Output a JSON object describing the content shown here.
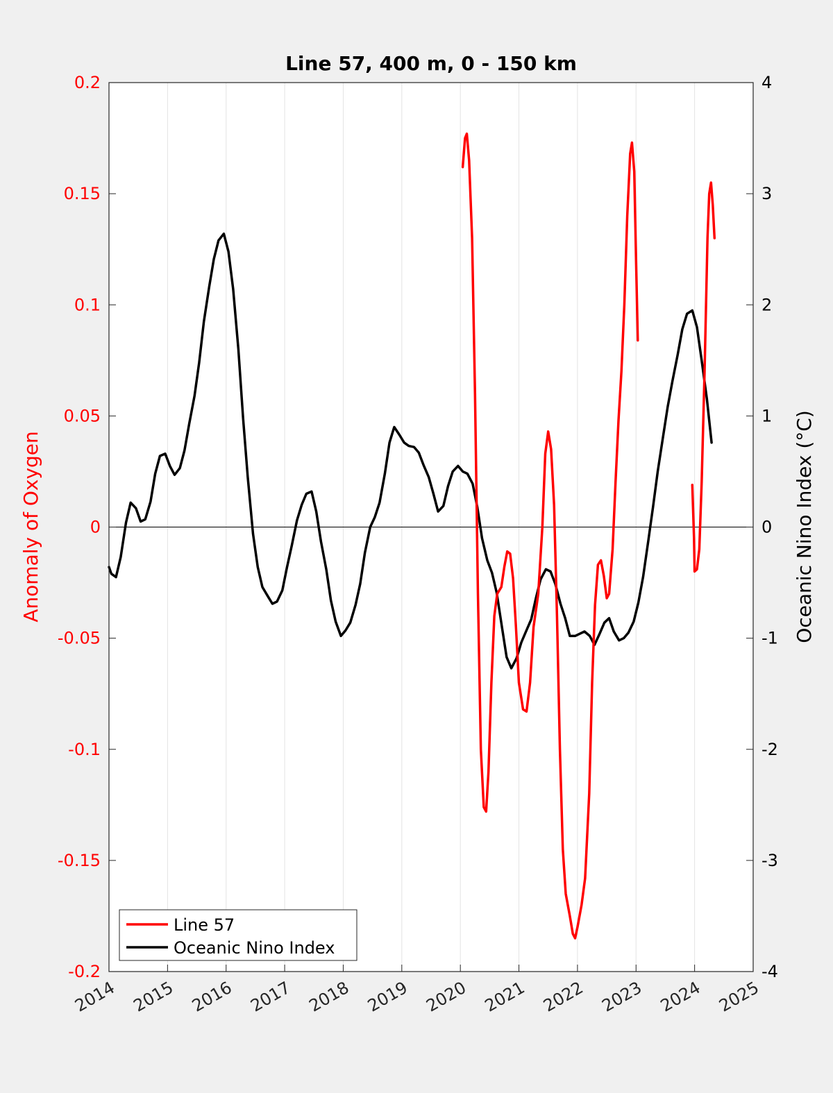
{
  "chart_data": {
    "type": "line",
    "title": "Line 57, 400 m, 0 - 150 km",
    "ylabel_left": "Anomaly of Oxygen",
    "ylabel_right": "Oceanic Nino Index (°C)",
    "xlabel": "",
    "xlim": [
      2014,
      2025
    ],
    "ylim_left": [
      -0.2,
      0.2
    ],
    "ylim_right": [
      -4,
      4
    ],
    "x_ticks": [
      {
        "value": 2014,
        "label": "2014"
      },
      {
        "value": 2015,
        "label": "2015"
      },
      {
        "value": 2016,
        "label": "2016"
      },
      {
        "value": 2017,
        "label": "2017"
      },
      {
        "value": 2018,
        "label": "2018"
      },
      {
        "value": 2019,
        "label": "2019"
      },
      {
        "value": 2020,
        "label": "2020"
      },
      {
        "value": 2021,
        "label": "2021"
      },
      {
        "value": 2022,
        "label": "2022"
      },
      {
        "value": 2023,
        "label": "2023"
      },
      {
        "value": 2024,
        "label": "2024"
      },
      {
        "value": 2025,
        "label": "2025"
      }
    ],
    "y_ticks_left": [
      {
        "value": 0.2,
        "label": "0.2"
      },
      {
        "value": 0.15,
        "label": "0.15"
      },
      {
        "value": 0.1,
        "label": "0.1"
      },
      {
        "value": 0.05,
        "label": "0.05"
      },
      {
        "value": 0,
        "label": "0"
      },
      {
        "value": -0.05,
        "label": "-0.05"
      },
      {
        "value": -0.1,
        "label": "-0.1"
      },
      {
        "value": -0.15,
        "label": "-0.15"
      },
      {
        "value": -0.2,
        "label": "-0.2"
      }
    ],
    "y_ticks_right": [
      {
        "value": 4,
        "label": "4"
      },
      {
        "value": 3,
        "label": "3"
      },
      {
        "value": 2,
        "label": "2"
      },
      {
        "value": 1,
        "label": "1"
      },
      {
        "value": 0,
        "label": "0"
      },
      {
        "value": -1,
        "label": "-1"
      },
      {
        "value": -2,
        "label": "-2"
      },
      {
        "value": -3,
        "label": "-3"
      },
      {
        "value": -4,
        "label": "-4"
      }
    ],
    "grid": "vertical",
    "zero_line": true,
    "legend_position": "bottom-left",
    "series": [
      {
        "name": "Line 57",
        "axis": "left",
        "color": "#ff0000",
        "segments": [
          [
            [
              2020.04,
              0.162
            ],
            [
              2020.08,
              0.175
            ],
            [
              2020.11,
              0.177
            ],
            [
              2020.15,
              0.165
            ],
            [
              2020.2,
              0.13
            ],
            [
              2020.25,
              0.06
            ],
            [
              2020.3,
              -0.03
            ],
            [
              2020.35,
              -0.1
            ],
            [
              2020.4,
              -0.126
            ],
            [
              2020.44,
              -0.128
            ],
            [
              2020.48,
              -0.11
            ],
            [
              2020.53,
              -0.07
            ],
            [
              2020.58,
              -0.04
            ],
            [
              2020.63,
              -0.03
            ],
            [
              2020.7,
              -0.027
            ],
            [
              2020.75,
              -0.018
            ],
            [
              2020.8,
              -0.011
            ],
            [
              2020.85,
              -0.012
            ],
            [
              2020.9,
              -0.023
            ],
            [
              2020.95,
              -0.045
            ],
            [
              2021.0,
              -0.07
            ],
            [
              2021.07,
              -0.082
            ],
            [
              2021.13,
              -0.083
            ],
            [
              2021.19,
              -0.07
            ],
            [
              2021.25,
              -0.045
            ],
            [
              2021.33,
              -0.03
            ],
            [
              2021.4,
              0.0
            ],
            [
              2021.45,
              0.033
            ],
            [
              2021.5,
              0.043
            ],
            [
              2021.55,
              0.035
            ],
            [
              2021.6,
              0.01
            ],
            [
              2021.65,
              -0.04
            ],
            [
              2021.7,
              -0.1
            ],
            [
              2021.75,
              -0.145
            ],
            [
              2021.8,
              -0.165
            ],
            [
              2021.87,
              -0.175
            ],
            [
              2021.92,
              -0.183
            ],
            [
              2021.96,
              -0.185
            ],
            [
              2022.0,
              -0.18
            ],
            [
              2022.07,
              -0.17
            ],
            [
              2022.13,
              -0.158
            ],
            [
              2022.2,
              -0.12
            ],
            [
              2022.25,
              -0.07
            ],
            [
              2022.3,
              -0.035
            ],
            [
              2022.35,
              -0.017
            ],
            [
              2022.4,
              -0.015
            ],
            [
              2022.45,
              -0.022
            ],
            [
              2022.5,
              -0.032
            ],
            [
              2022.54,
              -0.03
            ],
            [
              2022.6,
              -0.01
            ],
            [
              2022.65,
              0.02
            ],
            [
              2022.7,
              0.048
            ],
            [
              2022.75,
              0.07
            ],
            [
              2022.8,
              0.1
            ],
            [
              2022.85,
              0.14
            ],
            [
              2022.9,
              0.168
            ],
            [
              2022.93,
              0.173
            ],
            [
              2022.97,
              0.16
            ],
            [
              2023.0,
              0.12
            ],
            [
              2023.03,
              0.084
            ]
          ],
          [
            [
              2023.96,
              0.019
            ],
            [
              2023.99,
              -0.005
            ],
            [
              2024.0,
              -0.02
            ],
            [
              2024.04,
              -0.019
            ],
            [
              2024.08,
              -0.01
            ],
            [
              2024.12,
              0.02
            ],
            [
              2024.17,
              0.07
            ],
            [
              2024.22,
              0.13
            ],
            [
              2024.25,
              0.15
            ],
            [
              2024.28,
              0.155
            ],
            [
              2024.31,
              0.145
            ],
            [
              2024.34,
              0.13
            ]
          ]
        ]
      },
      {
        "name": "Oceanic Nino Index",
        "axis": "right",
        "color": "#000000",
        "segments": [
          [
            [
              2014.0,
              -0.36
            ],
            [
              2014.04,
              -0.42
            ],
            [
              2014.12,
              -0.45
            ],
            [
              2014.2,
              -0.27
            ],
            [
              2014.29,
              0.04
            ],
            [
              2014.37,
              0.22
            ],
            [
              2014.46,
              0.17
            ],
            [
              2014.54,
              0.05
            ],
            [
              2014.62,
              0.07
            ],
            [
              2014.71,
              0.23
            ],
            [
              2014.79,
              0.48
            ],
            [
              2014.87,
              0.64
            ],
            [
              2014.96,
              0.66
            ],
            [
              2015.04,
              0.55
            ],
            [
              2015.12,
              0.47
            ],
            [
              2015.21,
              0.53
            ],
            [
              2015.29,
              0.69
            ],
            [
              2015.37,
              0.93
            ],
            [
              2015.46,
              1.18
            ],
            [
              2015.54,
              1.48
            ],
            [
              2015.62,
              1.85
            ],
            [
              2015.71,
              2.16
            ],
            [
              2015.79,
              2.41
            ],
            [
              2015.87,
              2.58
            ],
            [
              2015.96,
              2.64
            ],
            [
              2016.04,
              2.48
            ],
            [
              2016.12,
              2.14
            ],
            [
              2016.21,
              1.6
            ],
            [
              2016.29,
              0.98
            ],
            [
              2016.37,
              0.45
            ],
            [
              2016.46,
              -0.06
            ],
            [
              2016.54,
              -0.36
            ],
            [
              2016.62,
              -0.54
            ],
            [
              2016.71,
              -0.62
            ],
            [
              2016.79,
              -0.69
            ],
            [
              2016.87,
              -0.67
            ],
            [
              2016.96,
              -0.57
            ],
            [
              2017.04,
              -0.36
            ],
            [
              2017.12,
              -0.17
            ],
            [
              2017.21,
              0.06
            ],
            [
              2017.29,
              0.2
            ],
            [
              2017.37,
              0.3
            ],
            [
              2017.46,
              0.32
            ],
            [
              2017.54,
              0.14
            ],
            [
              2017.62,
              -0.13
            ],
            [
              2017.71,
              -0.38
            ],
            [
              2017.79,
              -0.66
            ],
            [
              2017.87,
              -0.85
            ],
            [
              2017.96,
              -0.98
            ],
            [
              2018.04,
              -0.93
            ],
            [
              2018.12,
              -0.86
            ],
            [
              2018.21,
              -0.7
            ],
            [
              2018.29,
              -0.51
            ],
            [
              2018.37,
              -0.23
            ],
            [
              2018.46,
              0.0
            ],
            [
              2018.54,
              0.09
            ],
            [
              2018.62,
              0.22
            ],
            [
              2018.71,
              0.48
            ],
            [
              2018.79,
              0.76
            ],
            [
              2018.87,
              0.9
            ],
            [
              2018.96,
              0.83
            ],
            [
              2019.04,
              0.76
            ],
            [
              2019.12,
              0.73
            ],
            [
              2019.21,
              0.72
            ],
            [
              2019.29,
              0.67
            ],
            [
              2019.37,
              0.56
            ],
            [
              2019.46,
              0.45
            ],
            [
              2019.54,
              0.3
            ],
            [
              2019.62,
              0.14
            ],
            [
              2019.71,
              0.19
            ],
            [
              2019.79,
              0.37
            ],
            [
              2019.87,
              0.5
            ],
            [
              2019.96,
              0.55
            ],
            [
              2020.04,
              0.5
            ],
            [
              2020.12,
              0.48
            ],
            [
              2020.21,
              0.39
            ],
            [
              2020.29,
              0.18
            ],
            [
              2020.37,
              -0.1
            ],
            [
              2020.46,
              -0.3
            ],
            [
              2020.54,
              -0.41
            ],
            [
              2020.62,
              -0.59
            ],
            [
              2020.71,
              -0.9
            ],
            [
              2020.79,
              -1.17
            ],
            [
              2020.87,
              -1.27
            ],
            [
              2020.96,
              -1.18
            ],
            [
              2021.04,
              -1.04
            ],
            [
              2021.12,
              -0.94
            ],
            [
              2021.21,
              -0.83
            ],
            [
              2021.29,
              -0.64
            ],
            [
              2021.37,
              -0.47
            ],
            [
              2021.46,
              -0.38
            ],
            [
              2021.54,
              -0.4
            ],
            [
              2021.62,
              -0.51
            ],
            [
              2021.71,
              -0.69
            ],
            [
              2021.79,
              -0.82
            ],
            [
              2021.87,
              -0.98
            ],
            [
              2021.96,
              -0.98
            ],
            [
              2022.04,
              -0.96
            ],
            [
              2022.12,
              -0.94
            ],
            [
              2022.21,
              -0.98
            ],
            [
              2022.29,
              -1.06
            ],
            [
              2022.37,
              -0.97
            ],
            [
              2022.46,
              -0.86
            ],
            [
              2022.54,
              -0.82
            ],
            [
              2022.62,
              -0.94
            ],
            [
              2022.71,
              -1.02
            ],
            [
              2022.79,
              -1.0
            ],
            [
              2022.87,
              -0.95
            ],
            [
              2022.96,
              -0.85
            ],
            [
              2023.04,
              -0.68
            ],
            [
              2023.12,
              -0.45
            ],
            [
              2023.21,
              -0.12
            ],
            [
              2023.29,
              0.18
            ],
            [
              2023.37,
              0.5
            ],
            [
              2023.46,
              0.81
            ],
            [
              2023.54,
              1.08
            ],
            [
              2023.62,
              1.31
            ],
            [
              2023.71,
              1.55
            ],
            [
              2023.79,
              1.78
            ],
            [
              2023.87,
              1.92
            ],
            [
              2023.96,
              1.95
            ],
            [
              2024.04,
              1.8
            ],
            [
              2024.12,
              1.5
            ],
            [
              2024.21,
              1.15
            ],
            [
              2024.29,
              0.76
            ]
          ]
        ]
      }
    ]
  }
}
